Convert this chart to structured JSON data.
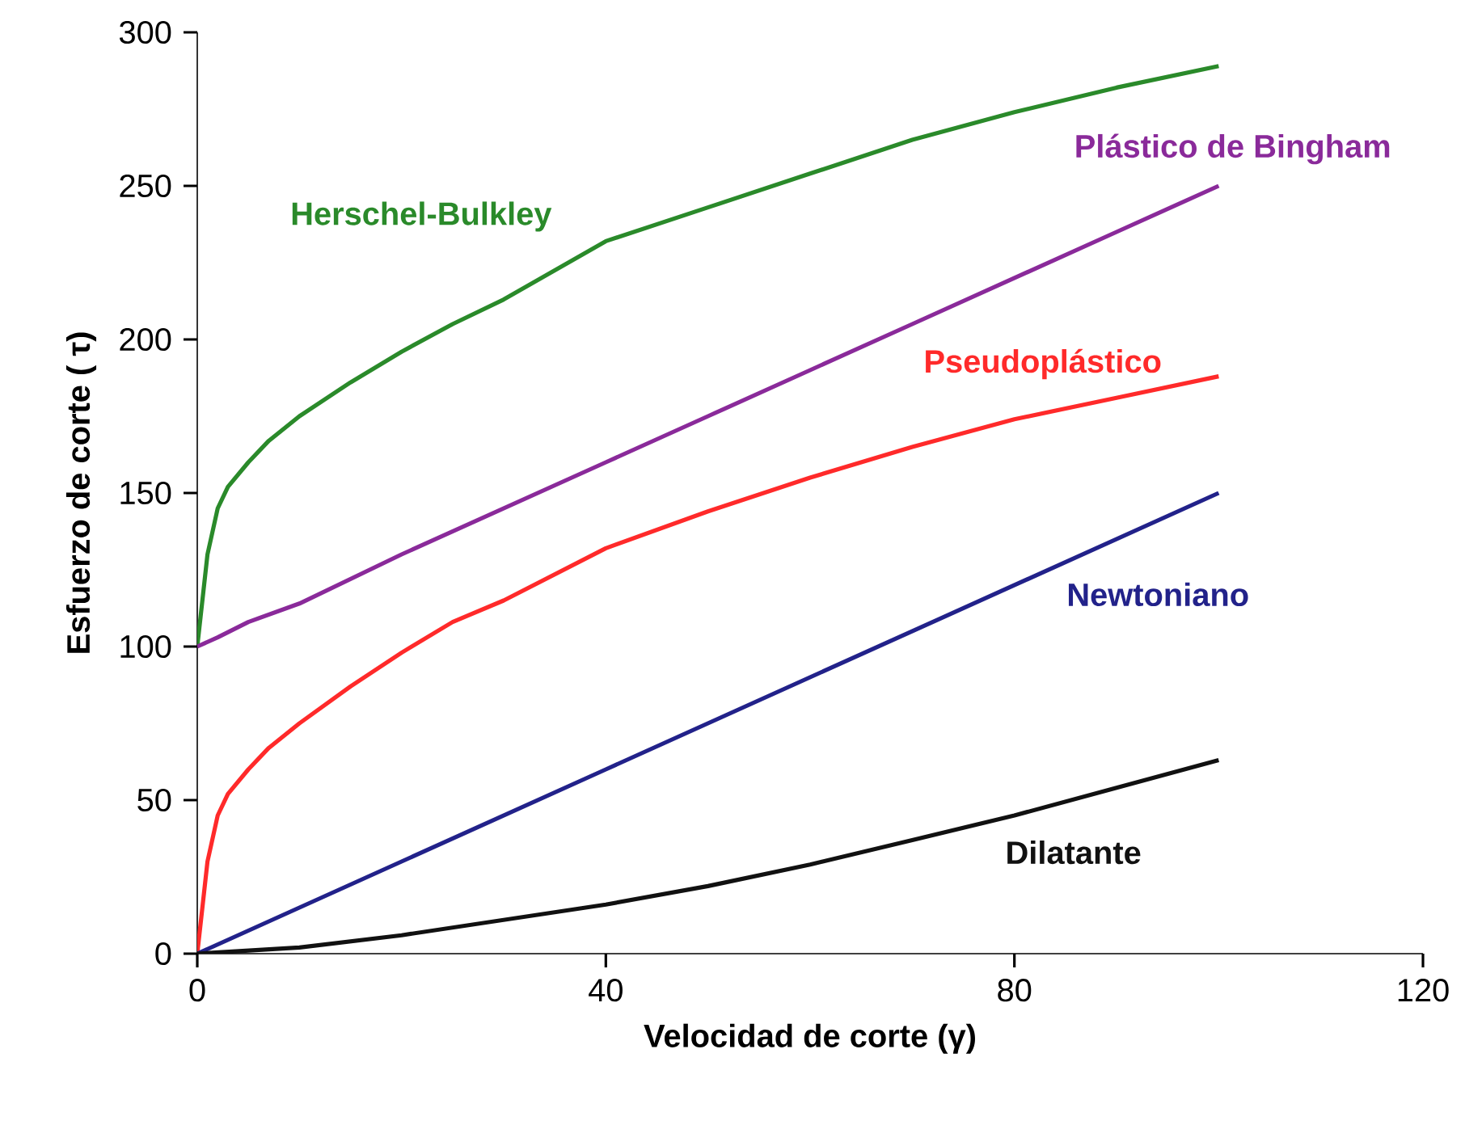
{
  "chart_data": {
    "type": "line",
    "xlabel": "Velocidad de corte (γ)",
    "ylabel": "Esfuerzo de corte ( τ)",
    "xlim": [
      0,
      120
    ],
    "xticks": [
      0,
      40,
      80,
      120
    ],
    "ylim": [
      0,
      300
    ],
    "yticks": [
      0,
      50,
      100,
      150,
      200,
      250,
      300
    ],
    "grid": false,
    "legend": false,
    "marker": "none",
    "line_style": "solid",
    "series": [
      {
        "name": "Herschel-Bulkley",
        "color": "#2a8a2a",
        "x": [
          0,
          1,
          2,
          3,
          5,
          7,
          10,
          15,
          20,
          25,
          30,
          40,
          50,
          60,
          70,
          80,
          90,
          100
        ],
        "values": [
          100,
          130,
          145,
          152,
          160,
          167,
          175,
          186,
          196,
          205,
          213,
          232,
          243,
          254,
          265,
          274,
          282,
          289
        ]
      },
      {
        "name": "Plástico de Bingham",
        "color": "#8a2a9a",
        "x": [
          0,
          2,
          5,
          10,
          20,
          30,
          40,
          50,
          60,
          70,
          80,
          90,
          100
        ],
        "values": [
          100,
          103,
          108,
          114,
          130,
          145,
          160,
          175,
          190,
          205,
          220,
          235,
          250
        ]
      },
      {
        "name": "Pseudoplástico",
        "color": "#ff2a2a",
        "x": [
          0,
          1,
          2,
          3,
          5,
          7,
          10,
          15,
          20,
          25,
          30,
          40,
          50,
          60,
          70,
          80,
          90,
          100
        ],
        "values": [
          0,
          30,
          45,
          52,
          60,
          67,
          75,
          87,
          98,
          108,
          115,
          132,
          144,
          155,
          165,
          174,
          181,
          188
        ]
      },
      {
        "name": "Newtoniano",
        "color": "#22228a",
        "x": [
          0,
          10,
          20,
          40,
          60,
          80,
          100
        ],
        "values": [
          0,
          15,
          30,
          60,
          90,
          120,
          150
        ]
      },
      {
        "name": "Dilatante",
        "color": "#111111",
        "x": [
          0,
          10,
          20,
          30,
          40,
          50,
          60,
          70,
          80,
          90,
          100
        ],
        "values": [
          0,
          2,
          6,
          11,
          16,
          22,
          29,
          37,
          45,
          54,
          63
        ]
      }
    ]
  }
}
